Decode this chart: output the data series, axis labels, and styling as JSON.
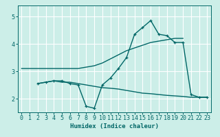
{
  "xlabel": "Humidex (Indice chaleur)",
  "bg_color": "#cceee8",
  "line_color": "#006666",
  "grid_color": "#ffffff",
  "xlim": [
    -0.5,
    23.5
  ],
  "ylim": [
    1.5,
    5.4
  ],
  "yticks": [
    2,
    3,
    4,
    5
  ],
  "xticks": [
    0,
    1,
    2,
    3,
    4,
    5,
    6,
    7,
    8,
    9,
    10,
    11,
    12,
    13,
    14,
    15,
    16,
    17,
    18,
    19,
    20,
    21,
    22,
    23
  ],
  "line1_x": [
    0,
    1,
    2,
    3,
    4,
    5,
    6,
    7,
    8,
    9,
    10,
    11,
    12,
    13,
    14,
    15,
    16,
    17,
    18,
    19,
    20
  ],
  "line1_y": [
    3.1,
    3.1,
    3.1,
    3.1,
    3.1,
    3.1,
    3.1,
    3.1,
    3.15,
    3.2,
    3.3,
    3.45,
    3.6,
    3.75,
    3.85,
    3.95,
    4.05,
    4.1,
    4.15,
    4.2,
    4.2
  ],
  "line2_x": [
    2,
    3,
    4,
    5,
    6,
    7,
    8,
    9,
    10,
    11,
    12,
    13,
    14,
    15,
    16,
    17,
    18,
    19,
    20,
    21,
    22,
    23
  ],
  "line2_y": [
    2.55,
    2.6,
    2.65,
    2.65,
    2.55,
    2.5,
    1.72,
    1.65,
    2.5,
    2.75,
    3.1,
    3.5,
    4.35,
    4.6,
    4.85,
    4.35,
    4.3,
    4.05,
    4.05,
    2.15,
    2.05,
    2.05
  ],
  "line3_x": [
    2,
    3,
    4,
    5,
    6,
    7,
    8,
    9,
    10,
    11,
    12,
    13,
    14,
    15,
    16,
    17,
    18,
    19,
    20,
    21,
    22,
    23
  ],
  "line3_y": [
    2.55,
    2.6,
    2.65,
    2.6,
    2.6,
    2.55,
    2.5,
    2.45,
    2.4,
    2.38,
    2.35,
    2.3,
    2.25,
    2.2,
    2.18,
    2.15,
    2.12,
    2.1,
    2.08,
    2.05,
    2.05,
    2.05
  ]
}
